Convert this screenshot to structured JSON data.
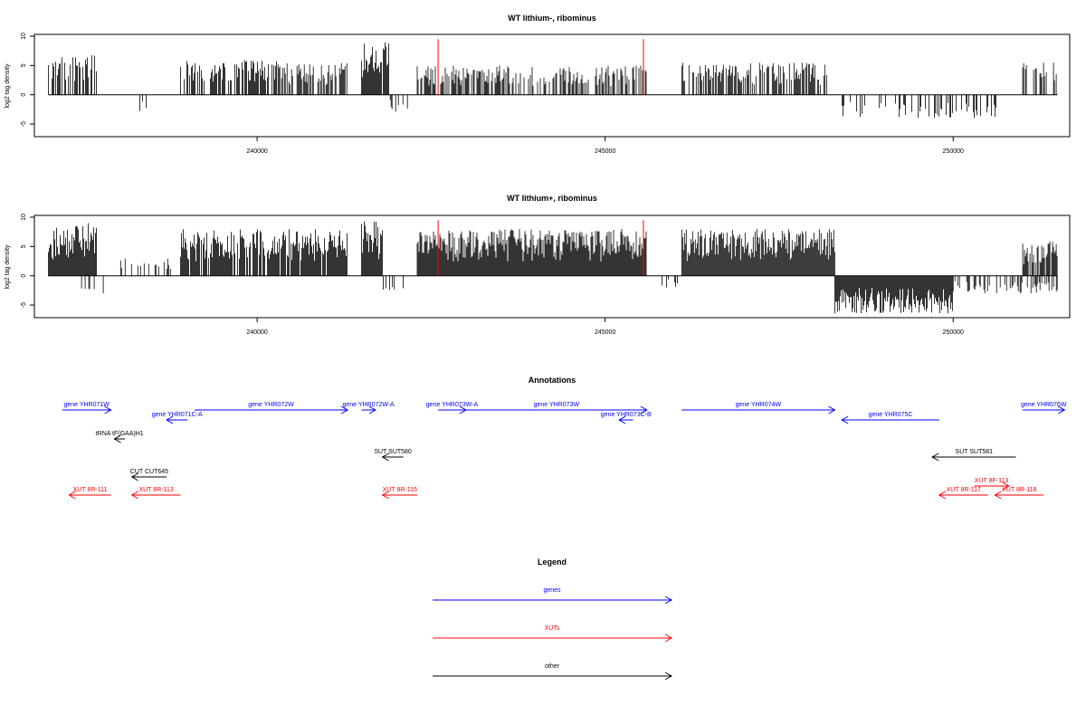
{
  "chart_data": [
    {
      "type": "bar",
      "title": "WT lithium-, ribominus",
      "ylabel": "log2 tag density",
      "xlabel": "",
      "xlim": [
        236800,
        251600
      ],
      "ylim": [
        -7,
        10
      ],
      "yticks": [
        -5,
        0,
        5,
        10
      ],
      "xticks": [
        240000,
        245000,
        250000
      ],
      "seed": 11,
      "segments": [
        {
          "start": 237000,
          "end": 237700,
          "sign": 1,
          "max": 7.0,
          "density": 0.55
        },
        {
          "start": 238300,
          "end": 238500,
          "sign": -1,
          "max": 3.0,
          "density": 0.25
        },
        {
          "start": 238900,
          "end": 240300,
          "sign": 1,
          "max": 6.0,
          "density": 0.6
        },
        {
          "start": 240300,
          "end": 241300,
          "sign": 1,
          "max": 5.5,
          "density": 0.6
        },
        {
          "start": 241500,
          "end": 241900,
          "sign": 1,
          "max": 9.5,
          "density": 0.95
        },
        {
          "start": 241900,
          "end": 242200,
          "sign": -1,
          "max": 3.0,
          "density": 0.3
        },
        {
          "start": 242300,
          "end": 245600,
          "sign": 1,
          "max": 5.0,
          "density": 0.6
        },
        {
          "start": 246100,
          "end": 248200,
          "sign": 1,
          "max": 5.5,
          "density": 0.6
        },
        {
          "start": 248300,
          "end": 250700,
          "sign": -1,
          "max": 4.0,
          "density": 0.25
        },
        {
          "start": 251000,
          "end": 251500,
          "sign": 1,
          "max": 5.5,
          "density": 0.5
        }
      ],
      "markers": [
        242600,
        245550
      ],
      "marker_color": "#ff0000",
      "bar_color": "#000000"
    },
    {
      "type": "bar",
      "title": "WT lithium+, ribominus",
      "ylabel": "log2 tag density",
      "xlabel": "",
      "xlim": [
        236800,
        251600
      ],
      "ylim": [
        -7,
        10
      ],
      "yticks": [
        -5,
        0,
        5,
        10
      ],
      "xticks": [
        240000,
        245000,
        250000
      ],
      "seed": 29,
      "segments": [
        {
          "start": 237000,
          "end": 237700,
          "sign": 1,
          "max": 9.0,
          "density": 1.0
        },
        {
          "start": 237400,
          "end": 237800,
          "sign": -1,
          "max": 3.0,
          "density": 0.2
        },
        {
          "start": 238000,
          "end": 238900,
          "sign": 1,
          "max": 3.0,
          "density": 0.35
        },
        {
          "start": 238900,
          "end": 241300,
          "sign": 1,
          "max": 8.0,
          "density": 0.9
        },
        {
          "start": 241500,
          "end": 241800,
          "sign": 1,
          "max": 9.5,
          "density": 1.0
        },
        {
          "start": 241800,
          "end": 242100,
          "sign": -1,
          "max": 2.5,
          "density": 0.3
        },
        {
          "start": 242300,
          "end": 245600,
          "sign": 1,
          "max": 8.0,
          "density": 1.0
        },
        {
          "start": 245700,
          "end": 246100,
          "sign": -1,
          "max": 2.0,
          "density": 0.2
        },
        {
          "start": 246100,
          "end": 248300,
          "sign": 1,
          "max": 8.0,
          "density": 1.0
        },
        {
          "start": 248300,
          "end": 250000,
          "sign": -1,
          "max": 6.5,
          "density": 1.0
        },
        {
          "start": 250000,
          "end": 251500,
          "sign": -1,
          "max": 3.0,
          "density": 0.45
        },
        {
          "start": 251000,
          "end": 251500,
          "sign": 1,
          "max": 6.0,
          "density": 0.9
        }
      ],
      "markers": [
        242600,
        245550
      ],
      "marker_color": "#ff0000",
      "bar_color": "#000000"
    }
  ],
  "annotations": {
    "title": "Annotations",
    "xlim": [
      236800,
      251600
    ],
    "items": [
      {
        "label": "gene YHR071W",
        "start": 237200,
        "end": 237900,
        "dir": "right",
        "row": 0,
        "kind": "gene"
      },
      {
        "label": "gene YHR072W",
        "start": 239100,
        "end": 241300,
        "dir": "right",
        "row": 0,
        "kind": "gene"
      },
      {
        "label": "gene YHR072W-A",
        "start": 241500,
        "end": 241700,
        "dir": "right",
        "row": 0,
        "kind": "gene"
      },
      {
        "label": "gene YHR073W-A",
        "start": 242600,
        "end": 243000,
        "dir": "right",
        "row": 0,
        "kind": "gene"
      },
      {
        "label": "gene YHR073W",
        "start": 243000,
        "end": 245600,
        "dir": "right",
        "row": 0,
        "kind": "gene"
      },
      {
        "label": "gene YHR074W",
        "start": 246100,
        "end": 248300,
        "dir": "right",
        "row": 0,
        "kind": "gene"
      },
      {
        "label": "gene YHR076W",
        "start": 251000,
        "end": 251600,
        "dir": "right",
        "row": 0,
        "kind": "gene"
      },
      {
        "label": "gene YHR071C-A",
        "start": 238700,
        "end": 239000,
        "dir": "left",
        "row": 1,
        "kind": "gene"
      },
      {
        "label": "gene YHR073C-B",
        "start": 245200,
        "end": 245400,
        "dir": "left",
        "row": 1,
        "kind": "gene"
      },
      {
        "label": "gene YHR075C",
        "start": 248400,
        "end": 249800,
        "dir": "left",
        "row": 1,
        "kind": "gene"
      },
      {
        "label": "tRNA tF(GAA)H1",
        "start": 237950,
        "end": 238100,
        "dir": "left",
        "row": 2,
        "kind": "other"
      },
      {
        "label": "SUT SUT580",
        "start": 241800,
        "end": 242100,
        "dir": "left",
        "row": 3,
        "kind": "other"
      },
      {
        "label": "SUT SUT581",
        "start": 249700,
        "end": 250900,
        "dir": "left",
        "row": 3,
        "kind": "other"
      },
      {
        "label": "CUT CUT645",
        "start": 238200,
        "end": 238700,
        "dir": "left",
        "row": 4,
        "kind": "other"
      },
      {
        "label": "XUT 8F-113",
        "start": 250300,
        "end": 250800,
        "dir": "right",
        "row": 5,
        "kind": "xut"
      },
      {
        "label": "XUT 8R-111",
        "start": 237300,
        "end": 237900,
        "dir": "left",
        "row": 6,
        "kind": "xut"
      },
      {
        "label": "XUT 8R-113",
        "start": 238200,
        "end": 238900,
        "dir": "left",
        "row": 6,
        "kind": "xut"
      },
      {
        "label": "XUT 8R-115",
        "start": 241800,
        "end": 242300,
        "dir": "left",
        "row": 6,
        "kind": "xut"
      },
      {
        "label": "XUT 8R-117",
        "start": 249800,
        "end": 250500,
        "dir": "left",
        "row": 6,
        "kind": "xut"
      },
      {
        "label": "XUT 8R-118",
        "start": 250600,
        "end": 251300,
        "dir": "left",
        "row": 6,
        "kind": "xut"
      }
    ]
  },
  "legend": {
    "title": "Legend",
    "items": [
      {
        "label": "genes",
        "color": "#0000ff"
      },
      {
        "label": "XUTs",
        "color": "#ff0000"
      },
      {
        "label": "other",
        "color": "#000000"
      }
    ]
  },
  "colors": {
    "gene": "#0000ff",
    "xut": "#ff0000",
    "other": "#000000"
  }
}
